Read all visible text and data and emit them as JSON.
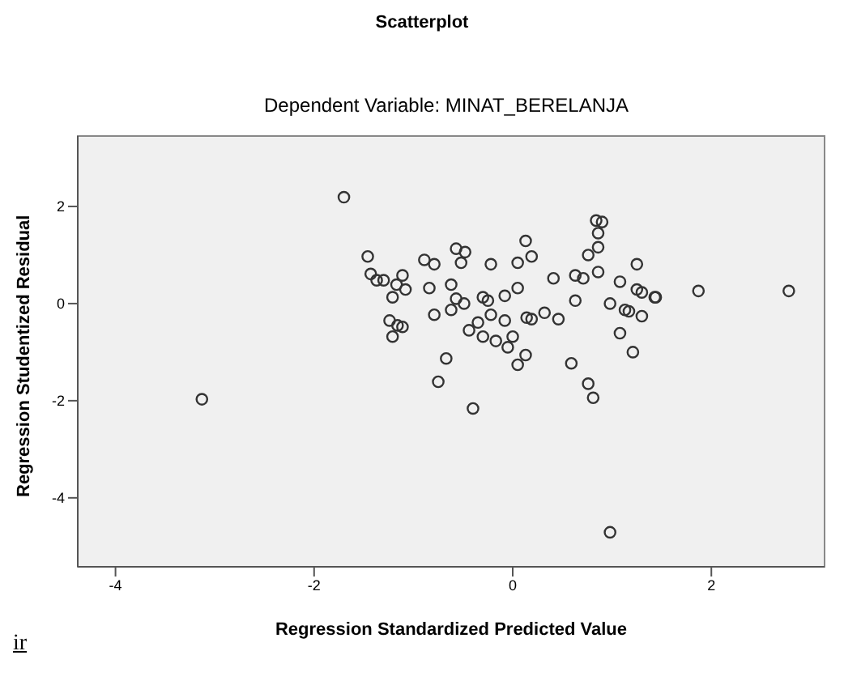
{
  "chart_data": {
    "type": "scatter",
    "title": "Scatterplot",
    "subtitle": "Dependent Variable: MINAT_BERELANJA",
    "xlabel": "Regression Standardized Predicted Value",
    "ylabel": "Regression Studentized Residual",
    "annotations": [
      "ir"
    ],
    "x": [
      -1.7,
      -1.46,
      -1.43,
      -1.37,
      -1.3,
      -1.11,
      -1.17,
      -1.08,
      -1.21,
      -1.24,
      -1.16,
      -1.11,
      -1.21,
      -0.89,
      -0.79,
      -0.57,
      -0.48,
      -0.52,
      -0.84,
      -0.62,
      -0.57,
      -0.62,
      -0.49,
      -0.79,
      -0.22,
      -0.3,
      -0.25,
      -0.22,
      -0.35,
      -0.44,
      -0.3,
      -0.17,
      -0.08,
      -0.08,
      0.05,
      0.05,
      0.13,
      0.19,
      0.0,
      -0.05,
      0.13,
      0.05,
      0.14,
      0.19,
      0.32,
      0.46,
      0.41,
      0.63,
      0.63,
      0.71,
      0.76,
      0.86,
      0.86,
      0.84,
      0.9,
      0.86,
      1.08,
      0.98,
      1.13,
      1.17,
      1.25,
      1.25,
      1.3,
      1.3,
      1.43,
      1.44,
      1.08,
      1.21,
      1.87,
      2.78,
      -0.67,
      -0.75,
      0.59,
      0.76,
      -3.13,
      -0.4,
      0.81,
      0.98
    ],
    "series": [
      {
        "color": "#333333",
        "values": [
          2.19,
          0.97,
          0.61,
          0.48,
          0.48,
          0.58,
          0.39,
          0.29,
          0.13,
          -0.35,
          -0.45,
          -0.48,
          -0.68,
          0.9,
          0.81,
          1.13,
          1.06,
          0.84,
          0.32,
          0.39,
          0.1,
          -0.13,
          0.0,
          -0.23,
          0.81,
          0.13,
          0.06,
          -0.23,
          -0.39,
          -0.55,
          -0.68,
          -0.77,
          -0.35,
          0.16,
          0.32,
          0.84,
          1.29,
          0.97,
          -0.68,
          -0.9,
          -1.06,
          -1.26,
          -0.29,
          -0.32,
          -0.19,
          -0.32,
          0.52,
          0.06,
          0.58,
          0.52,
          1.0,
          1.16,
          1.45,
          1.71,
          1.68,
          0.65,
          0.45,
          0.0,
          -0.13,
          -0.16,
          0.81,
          0.29,
          0.23,
          -0.26,
          0.13,
          0.13,
          -0.61,
          -1.0,
          0.26,
          0.26,
          -1.13,
          -1.61,
          -1.23,
          -1.65,
          -1.97,
          -2.16,
          -1.94,
          -4.71
        ]
      }
    ],
    "xlim": [
      -4.38,
      3.14
    ],
    "ylim": [
      -5.42,
      3.45
    ],
    "xticks": [
      -4,
      -2,
      0,
      2
    ],
    "yticks": [
      -4,
      -2,
      0,
      2
    ],
    "marker": "circle"
  }
}
